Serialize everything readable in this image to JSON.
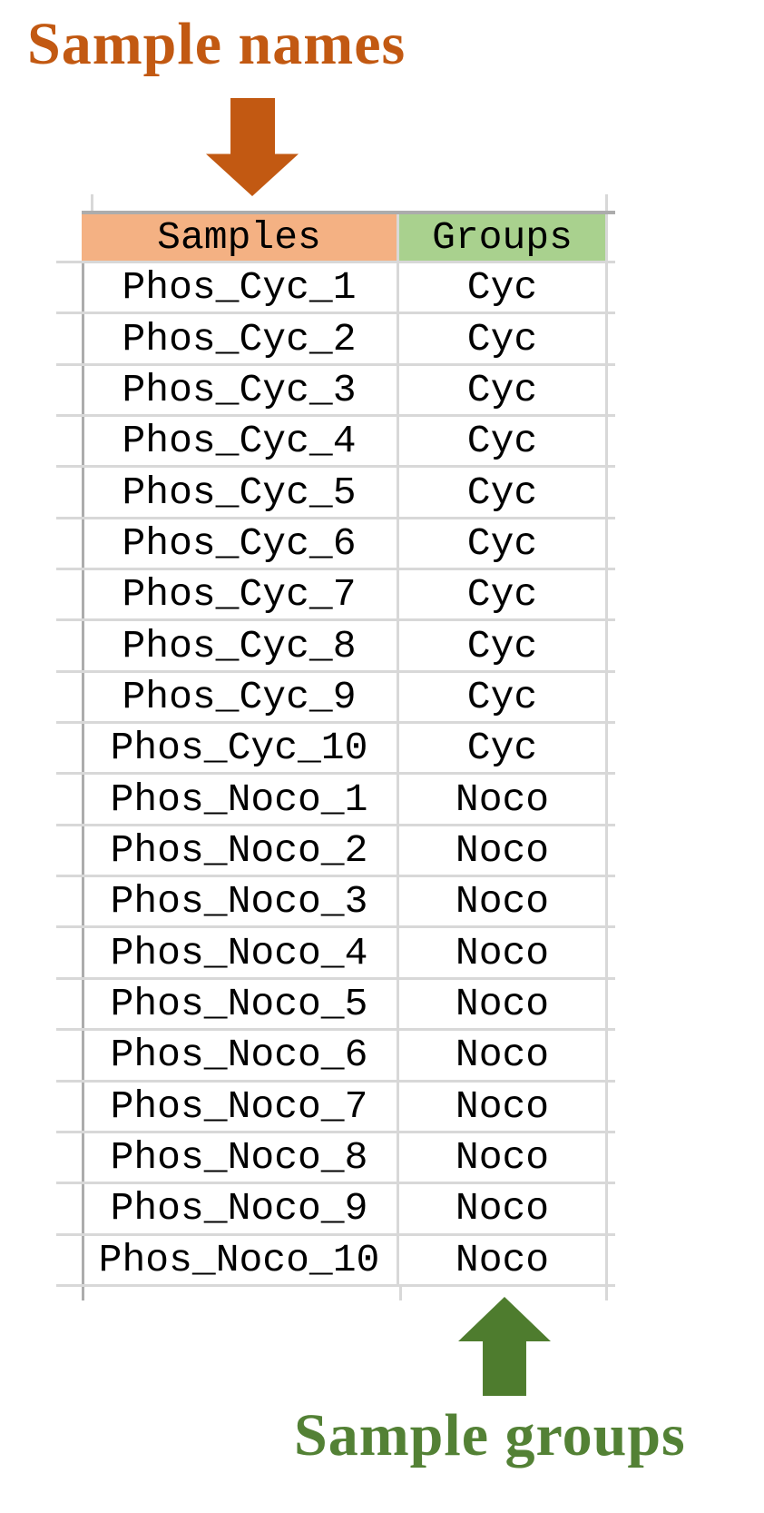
{
  "annotations": {
    "sample_names": "Sample names",
    "sample_groups": "Sample groups"
  },
  "icons": {
    "down_arrow": "block-arrow-down",
    "up_arrow": "block-arrow-up"
  },
  "colors": {
    "orange_accent": "#C25912",
    "green_accent": "#4E7C2E",
    "green_text": "#538135",
    "header_orange": "#F4B183",
    "header_green": "#A9D18E",
    "grid_light": "#D8D8D8",
    "grid_dark": "#ACACAC",
    "cell_text": "#000000",
    "background": "#FFFFFF"
  },
  "table": {
    "columns": [
      {
        "key": "sample",
        "label": "Samples",
        "header_bg": "#F4B183"
      },
      {
        "key": "group",
        "label": "Groups",
        "header_bg": "#A9D18E"
      }
    ],
    "rows": [
      {
        "sample": "Phos_Cyc_1",
        "group": "Cyc"
      },
      {
        "sample": "Phos_Cyc_2",
        "group": "Cyc"
      },
      {
        "sample": "Phos_Cyc_3",
        "group": "Cyc"
      },
      {
        "sample": "Phos_Cyc_4",
        "group": "Cyc"
      },
      {
        "sample": "Phos_Cyc_5",
        "group": "Cyc"
      },
      {
        "sample": "Phos_Cyc_6",
        "group": "Cyc"
      },
      {
        "sample": "Phos_Cyc_7",
        "group": "Cyc"
      },
      {
        "sample": "Phos_Cyc_8",
        "group": "Cyc"
      },
      {
        "sample": "Phos_Cyc_9",
        "group": "Cyc"
      },
      {
        "sample": "Phos_Cyc_10",
        "group": "Cyc"
      },
      {
        "sample": "Phos_Noco_1",
        "group": "Noco"
      },
      {
        "sample": "Phos_Noco_2",
        "group": "Noco"
      },
      {
        "sample": "Phos_Noco_3",
        "group": "Noco"
      },
      {
        "sample": "Phos_Noco_4",
        "group": "Noco"
      },
      {
        "sample": "Phos_Noco_5",
        "group": "Noco"
      },
      {
        "sample": "Phos_Noco_6",
        "group": "Noco"
      },
      {
        "sample": "Phos_Noco_7",
        "group": "Noco"
      },
      {
        "sample": "Phos_Noco_8",
        "group": "Noco"
      },
      {
        "sample": "Phos_Noco_9",
        "group": "Noco"
      },
      {
        "sample": "Phos_Noco_10",
        "group": "Noco"
      }
    ]
  }
}
